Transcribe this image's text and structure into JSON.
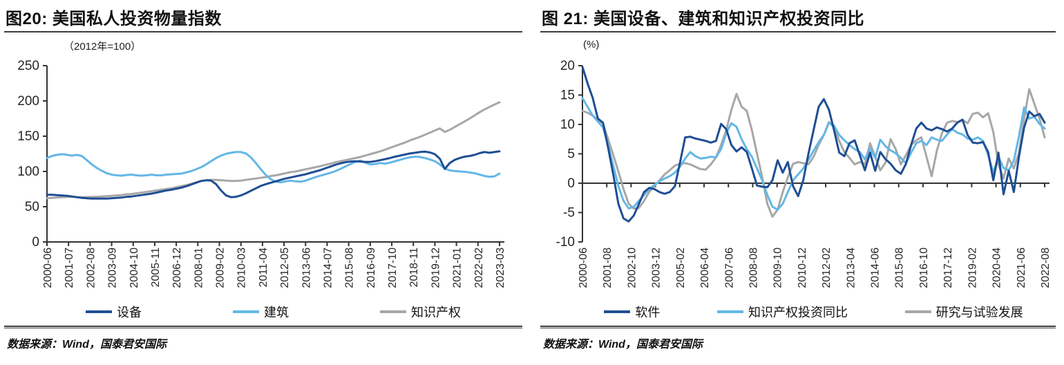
{
  "panels": [
    {
      "source": "数据来源：Wind，国泰君安国际"
    },
    {
      "source": "数据来源：Wind，国泰君安国际"
    }
  ],
  "chart_data": [
    {
      "type": "line",
      "title": "图20:  美国私人投资物量指数",
      "unit_label": "（2012年=100）",
      "ylim": [
        0,
        250
      ],
      "y_ticks": [
        0,
        50,
        100,
        150,
        200,
        250
      ],
      "x_axis_at": 0,
      "grid": false,
      "legend_position": "bottom",
      "x_tick_labels": [
        "2000-06",
        "2001-07",
        "2002-08",
        "2003-09",
        "2004-10",
        "2005-11",
        "2006-12",
        "2008-01",
        "2009-02",
        "2010-03",
        "2011-04",
        "2012-05",
        "2013-06",
        "2014-07",
        "2015-08",
        "2016-09",
        "2017-10",
        "2018-11",
        "2019-12",
        "2021-01",
        "2022-02",
        "2023-03"
      ],
      "series": [
        {
          "name": "设备",
          "color": "#1F4E94",
          "values": [
            67,
            67,
            66.5,
            66,
            65.5,
            64.5,
            63.5,
            62.5,
            62,
            61.5,
            61.5,
            61.5,
            61.5,
            62,
            62.5,
            63,
            64,
            64.5,
            65.5,
            66.5,
            67.5,
            68.5,
            70,
            71.5,
            73,
            74,
            75.5,
            77,
            79,
            81.5,
            84,
            86.5,
            87.5,
            87,
            82,
            73,
            66,
            63.5,
            64,
            66,
            69,
            72.5,
            76,
            79.5,
            82,
            84,
            86,
            88,
            90,
            91.5,
            93,
            94.5,
            96,
            98,
            100,
            102,
            104.5,
            107,
            109.5,
            111.5,
            113,
            114,
            114.5,
            114,
            113.5,
            113.5,
            114.5,
            116,
            117.5,
            119,
            121,
            122.5,
            124,
            125.5,
            126.5,
            127.5,
            128,
            127,
            124.5,
            118,
            103.5,
            112,
            116.5,
            119,
            121,
            122,
            123.5,
            126,
            127.5,
            126.5,
            127.5,
            128.5
          ]
        },
        {
          "name": "建筑",
          "color": "#63B7E6",
          "values": [
            119,
            122,
            123.5,
            124.5,
            123.5,
            122.5,
            123.5,
            122,
            116,
            110,
            105,
            101,
            97.5,
            95.5,
            94.5,
            94,
            95,
            95.5,
            94.5,
            94,
            94.5,
            95.5,
            94.5,
            94.5,
            95.5,
            96,
            96.5,
            97,
            98.5,
            100.5,
            103,
            106,
            110,
            114.5,
            119,
            122.5,
            125,
            126.5,
            127.5,
            127.5,
            125.5,
            120,
            112,
            103,
            95,
            89,
            85.5,
            84.5,
            86,
            87,
            86,
            85.5,
            87,
            89.5,
            92,
            94,
            96,
            98,
            100.5,
            103.5,
            107,
            110.5,
            113.5,
            115.5,
            112.5,
            110,
            110.5,
            112,
            111,
            112.5,
            114.5,
            116.5,
            118.5,
            120,
            121,
            120.5,
            119,
            117,
            114.5,
            110,
            104,
            101.5,
            100.5,
            100,
            99.5,
            98.5,
            97.5,
            95.5,
            93.5,
            92.5,
            93,
            97
          ]
        },
        {
          "name": "知识产权",
          "color": "#A7A7A7",
          "values": [
            62,
            62.5,
            63,
            63.5,
            64,
            64,
            63.5,
            63.5,
            63.5,
            64,
            64,
            64.5,
            65,
            65.5,
            66,
            66.5,
            67.5,
            68,
            69,
            70,
            71,
            72,
            73,
            74,
            75,
            76,
            77.5,
            79,
            80.5,
            82.5,
            84.5,
            86.5,
            87.5,
            88,
            88,
            87.5,
            87,
            86.5,
            86.5,
            87,
            88,
            89,
            90,
            91,
            92,
            93.5,
            94.5,
            96,
            97.5,
            99,
            100,
            101.5,
            103,
            104.5,
            106,
            107.5,
            109.5,
            111,
            113,
            114.5,
            116,
            117.5,
            119,
            120.5,
            122.5,
            124.5,
            126.5,
            128.5,
            131,
            133.5,
            136,
            138.5,
            141,
            144,
            146.5,
            149,
            152,
            155,
            158,
            161,
            156,
            159,
            163,
            167,
            171,
            175,
            179.5,
            184,
            188,
            191.5,
            195,
            198
          ]
        }
      ]
    },
    {
      "type": "line",
      "title": "图 21:  美国设备、建筑和知识产权投资同比",
      "unit_label": "(%)",
      "ylim": [
        -10,
        20
      ],
      "y_ticks": [
        -10,
        -5,
        0,
        5,
        10,
        15,
        20
      ],
      "x_axis_at": 0,
      "grid": false,
      "legend_position": "bottom",
      "x_tick_labels": [
        "2000-06",
        "2001-08",
        "2002-10",
        "2003-12",
        "2005-02",
        "2006-04",
        "2007-06",
        "2008-08",
        "2009-10",
        "2010-12",
        "2012-02",
        "2013-04",
        "2014-06",
        "2015-08",
        "2016-10",
        "2017-12",
        "2019-02",
        "2020-04",
        "2021-06",
        "2022-08"
      ],
      "series": [
        {
          "name": "软件",
          "color": "#1F4E94",
          "values": [
            19.8,
            17,
            14.5,
            11,
            10.3,
            6,
            1.5,
            -3.5,
            -6,
            -6.5,
            -5.5,
            -3.5,
            -1.5,
            -0.8,
            -1,
            -1.5,
            -1.8,
            -1.5,
            -0.5,
            3.5,
            7.8,
            7.9,
            7.6,
            7.4,
            7.2,
            6.9,
            7.2,
            10.1,
            9.2,
            6.5,
            5.4,
            6.1,
            5.3,
            2.5,
            -0.4,
            -0.6,
            -0.7,
            0.5,
            3.9,
            1.8,
            3.6,
            -0.5,
            -2.2,
            0.5,
            5,
            9,
            13,
            14.3,
            12.5,
            9,
            5.2,
            4.6,
            6.8,
            7.3,
            4.8,
            2.2,
            5.2,
            2.1,
            5.3,
            4.1,
            3.3,
            2.2,
            1.6,
            3.3,
            6.5,
            9.3,
            10.3,
            9.3,
            9,
            9.5,
            9.2,
            8.8,
            9.3,
            10.3,
            10.8,
            8.2,
            6.9,
            6.8,
            7,
            5.3,
            0.5,
            5.2,
            -1.9,
            2.1,
            -1.5,
            4.5,
            9.5,
            12.2,
            11.4,
            11.8,
            10.3
          ]
        },
        {
          "name": "知识产权投资同比",
          "color": "#63B7E6",
          "values": [
            14.5,
            13,
            11.5,
            10.5,
            9.5,
            6.5,
            3,
            -0.5,
            -3,
            -4.3,
            -4,
            -3,
            -2,
            -1,
            -0.3,
            0.3,
            0.8,
            1.2,
            1.8,
            2.8,
            4.2,
            5.3,
            4.6,
            4.2,
            4.3,
            4.5,
            4.4,
            5.8,
            8.5,
            10.2,
            9.6,
            7.5,
            5.8,
            4.5,
            2.5,
            0.5,
            -2,
            -4,
            -4.5,
            -3.5,
            -1.5,
            0.5,
            1.5,
            2.5,
            4,
            5.5,
            7,
            8.2,
            10.3,
            9.8,
            8.2,
            7.3,
            6.5,
            5.8,
            5.3,
            4.1,
            5.9,
            4.3,
            7.4,
            6.3,
            5.6,
            5.1,
            4.3,
            3.4,
            5.2,
            6.8,
            7.2,
            6.5,
            7.8,
            7.4,
            7.2,
            8.3,
            9.2,
            8.6,
            8.3,
            7.6,
            7.4,
            7.8,
            7.2,
            4.8,
            1.8,
            4.5,
            2.6,
            2.2,
            3.8,
            8,
            12.9,
            11,
            11.3,
            10.1,
            9.3
          ]
        },
        {
          "name": "研究与试验发展",
          "color": "#A7A7A7",
          "values": [
            12.3,
            12,
            11.5,
            10.8,
            10.2,
            7.5,
            4.8,
            2,
            -1,
            -3.5,
            -4.3,
            -4.2,
            -3,
            -1.5,
            -0.5,
            0.5,
            1.5,
            2.2,
            3,
            3.3,
            3.4,
            3.2,
            2.8,
            2.4,
            2.3,
            3.2,
            4.4,
            6.5,
            9,
            12.5,
            15.2,
            13,
            12.3,
            9,
            5,
            1,
            -3.5,
            -5.7,
            -4.5,
            -1.5,
            1,
            3.3,
            3.6,
            3.4,
            3.2,
            4.5,
            6.5,
            8.2,
            10.4,
            9.5,
            7.2,
            5.3,
            4.3,
            3.2,
            3.6,
            3.2,
            6.8,
            4.5,
            2.2,
            3.5,
            7.5,
            5.8,
            3.2,
            4.8,
            6.5,
            7.3,
            7.8,
            4.5,
            1.2,
            5.5,
            8.5,
            10.3,
            10.6,
            10.4,
            10.8,
            10.2,
            11.8,
            12,
            11.2,
            11.9,
            8.7,
            3.2,
            0.8,
            4.2,
            2.5,
            5.2,
            11,
            16,
            13.5,
            11,
            7.8
          ]
        }
      ]
    }
  ]
}
